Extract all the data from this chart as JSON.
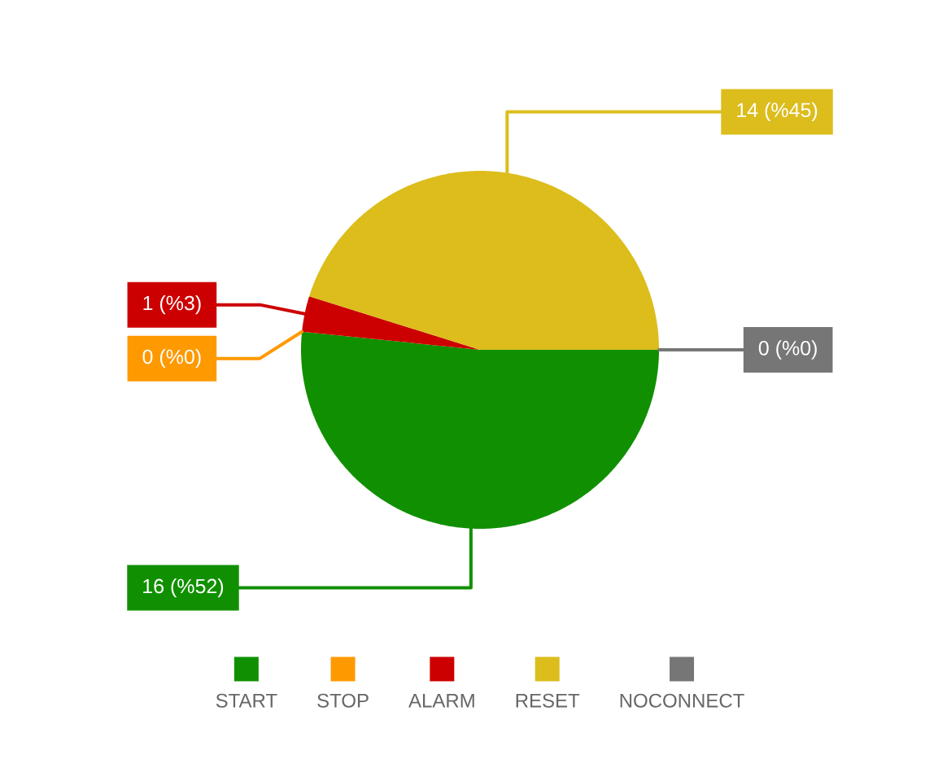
{
  "chart_data": {
    "type": "pie",
    "categories": [
      "START",
      "STOP",
      "ALARM",
      "RESET",
      "NOCONNECT"
    ],
    "values": [
      16,
      0,
      1,
      14,
      0
    ],
    "colors": [
      "#109000",
      "#ff9900",
      "#cc0000",
      "#dcbd1c",
      "#767676"
    ],
    "value_labels": [
      "16 (%52)",
      "0 (%0)",
      "1 (%3)",
      "14 (%45)",
      "0 (%0)"
    ],
    "legend": "bottom"
  }
}
